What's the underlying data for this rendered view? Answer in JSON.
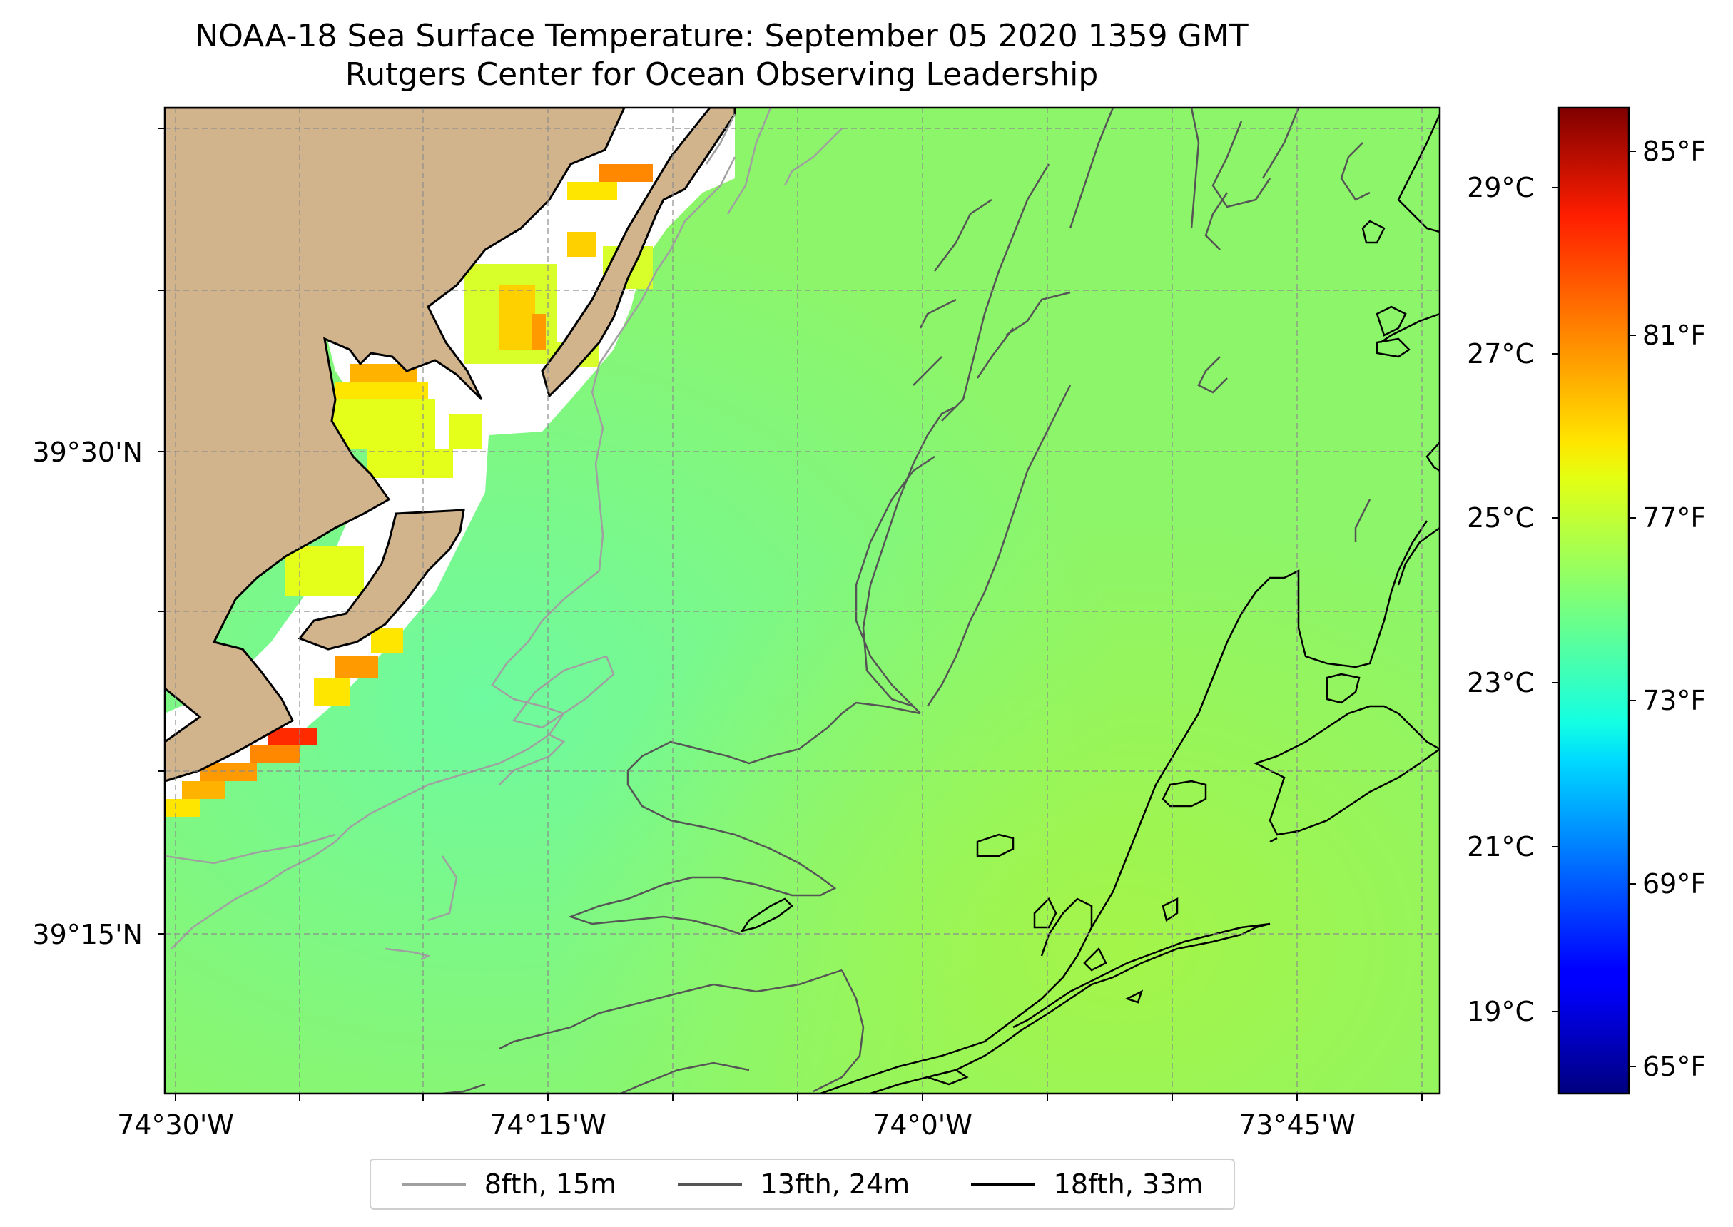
{
  "title": {
    "line1": "NOAA-18 Sea Surface Temperature: September 05 2020 1359 GMT",
    "line2": "Rutgers Center for Ocean Observing Leadership"
  },
  "axes": {
    "lat_labels": [
      "39°30'N",
      "39°15'N"
    ],
    "lon_labels": [
      "74°30'W",
      "74°15'W",
      "74°0'W",
      "73°45'W"
    ]
  },
  "colorbar": {
    "celsius_labels": [
      "29°C",
      "27°C",
      "25°C",
      "23°C",
      "21°C",
      "19°C"
    ],
    "fahrenheit_labels": [
      "85°F",
      "81°F",
      "77°F",
      "73°F",
      "69°F",
      "65°F"
    ],
    "colormap": "jet"
  },
  "legend": {
    "items": [
      {
        "label": "8fth, 15m",
        "color": "#a0a0a0"
      },
      {
        "label": "13fth, 24m",
        "color": "#555555"
      },
      {
        "label": "18fth, 33m",
        "color": "#000000"
      }
    ]
  },
  "colors": {
    "land": "#d2b48c",
    "ocean_main": "#8cf56a",
    "ocean_cool": "#6efaa0",
    "ocean_warm": "#a6f545"
  }
}
